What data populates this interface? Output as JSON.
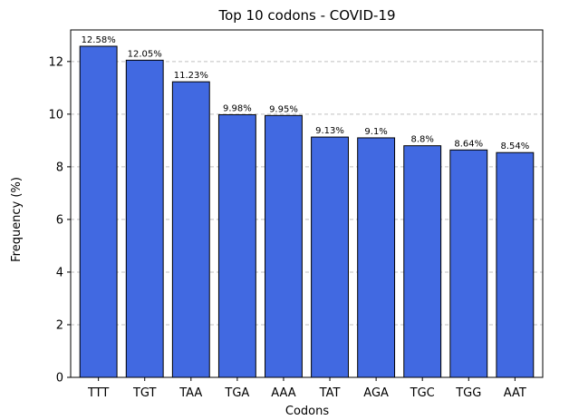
{
  "chart_data": {
    "type": "bar",
    "title": "Top 10 codons - COVID-19",
    "xlabel": "Codons",
    "ylabel": "Frequency (%)",
    "categories": [
      "TTT",
      "TGT",
      "TAA",
      "TGA",
      "AAA",
      "TAT",
      "AGA",
      "TGC",
      "TGG",
      "AAT"
    ],
    "values": [
      12.58,
      12.05,
      11.23,
      9.98,
      9.95,
      9.13,
      9.1,
      8.8,
      8.64,
      8.54
    ],
    "data_labels": [
      "12.58%",
      "12.05%",
      "11.23%",
      "9.98%",
      "9.95%",
      "9.13%",
      "9.1%",
      "8.8%",
      "8.64%",
      "8.54%"
    ],
    "ylim": [
      0,
      13.2
    ],
    "yticks": [
      0,
      2,
      4,
      6,
      8,
      10,
      12
    ],
    "grid": "y-dashed",
    "bar_color": "#4169e1",
    "bar_edge_color": "#000000",
    "grid_color": "#c0c0c0"
  }
}
